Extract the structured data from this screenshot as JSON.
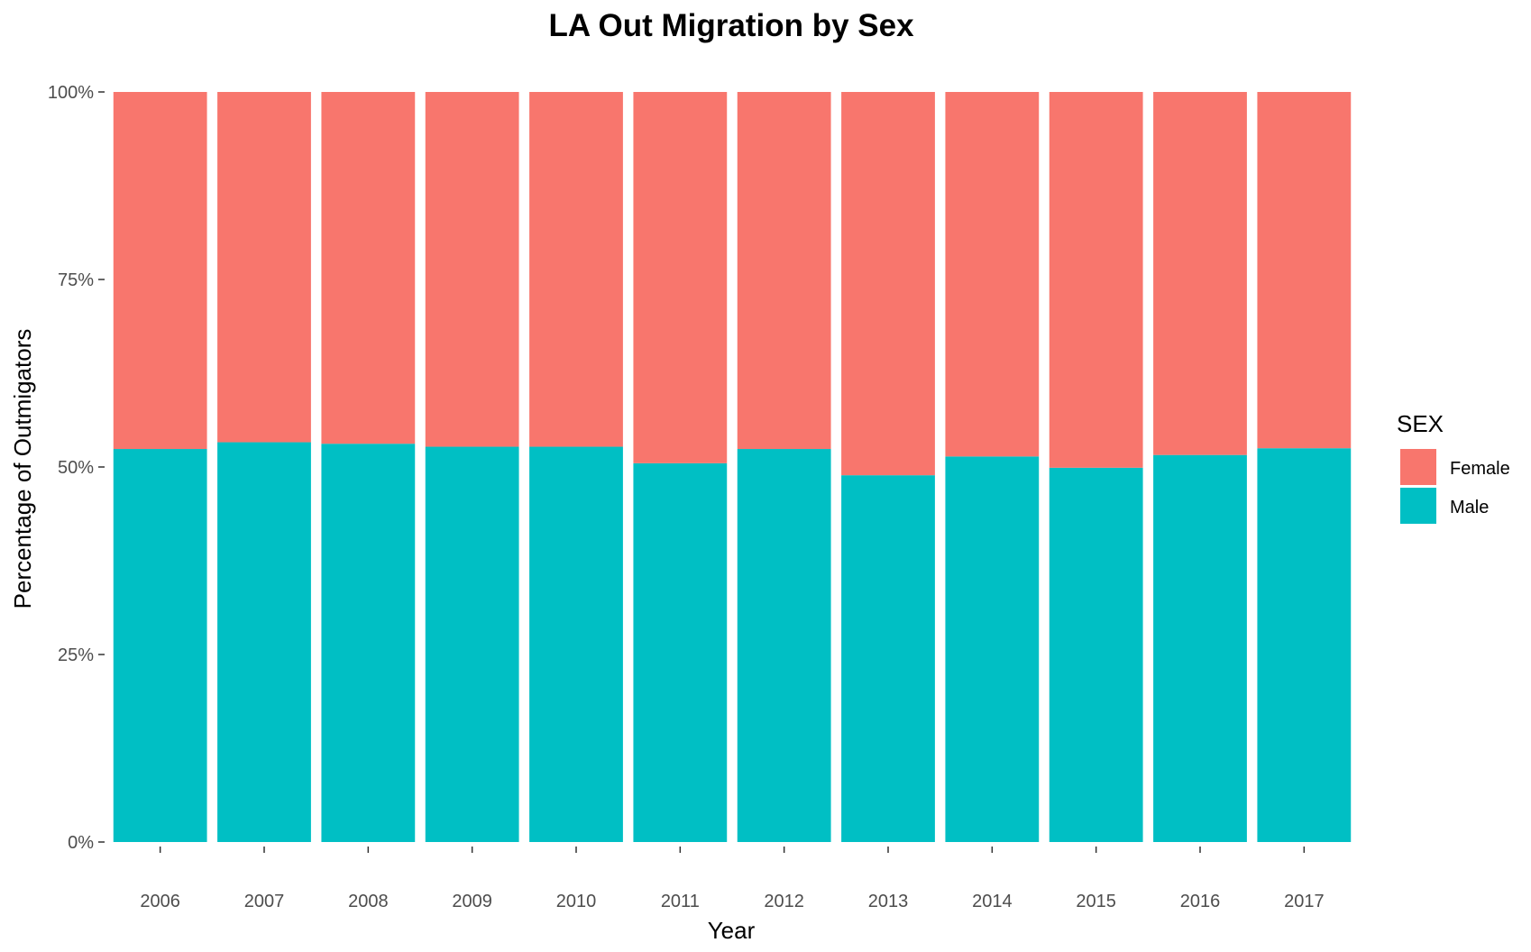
{
  "chart_data": {
    "type": "bar",
    "stacked": true,
    "normalized": true,
    "title": "LA Out Migration by Sex",
    "xlabel": "Year",
    "ylabel": "Percentage of Outmigators",
    "ylim": [
      0,
      1
    ],
    "y_ticks": [
      "0%",
      "25%",
      "50%",
      "75%",
      "100%"
    ],
    "grid": false,
    "legend_position": "right",
    "legend_title": "SEX",
    "categories": [
      "2006",
      "2007",
      "2008",
      "2009",
      "2010",
      "2011",
      "2012",
      "2013",
      "2014",
      "2015",
      "2016",
      "2017"
    ],
    "series": [
      {
        "name": "Male",
        "color": "#00BFC4",
        "values": [
          0.524,
          0.533,
          0.531,
          0.527,
          0.527,
          0.505,
          0.524,
          0.489,
          0.514,
          0.499,
          0.516,
          0.525
        ]
      },
      {
        "name": "Female",
        "color": "#F8766D",
        "values": [
          0.476,
          0.467,
          0.469,
          0.473,
          0.473,
          0.495,
          0.476,
          0.511,
          0.486,
          0.501,
          0.484,
          0.475
        ]
      }
    ]
  }
}
